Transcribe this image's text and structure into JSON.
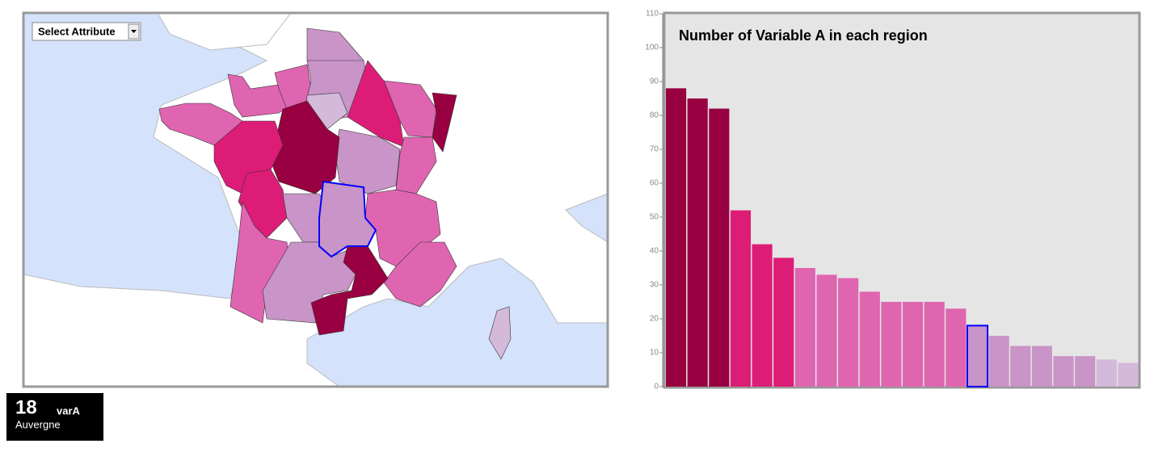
{
  "controls": {
    "select_label": "Select Attribute"
  },
  "info": {
    "value": 18,
    "attribute": "varA",
    "region": "Auvergne"
  },
  "chart_data": {
    "type": "bar",
    "title": "Number of Variable A in each region",
    "categories": [
      null,
      null,
      null,
      null,
      null,
      null,
      null,
      null,
      null,
      null,
      null,
      null,
      null,
      null,
      null,
      null,
      null,
      null,
      null,
      null,
      null,
      null
    ],
    "values": [
      88,
      85,
      82,
      52,
      42,
      38,
      35,
      33,
      32,
      28,
      25,
      25,
      25,
      23,
      18,
      15,
      12,
      12,
      9,
      9,
      8,
      7
    ],
    "colors": [
      "#990041",
      "#990041",
      "#990041",
      "#dd1c77",
      "#dd1c77",
      "#dd1c77",
      "#df65b0",
      "#df65b0",
      "#df65b0",
      "#df65b0",
      "#df65b0",
      "#df65b0",
      "#df65b0",
      "#df65b0",
      "#c994c7",
      "#c994c7",
      "#c994c7",
      "#c994c7",
      "#c994c7",
      "#c994c7",
      "#d4b9da",
      "#d4b9da"
    ],
    "selected_index": 14,
    "selected_color": "#0000ff",
    "ylim": [
      0,
      110
    ],
    "yticks": [
      0,
      10,
      20,
      30,
      40,
      50,
      60,
      70,
      80,
      90,
      100,
      110
    ]
  }
}
